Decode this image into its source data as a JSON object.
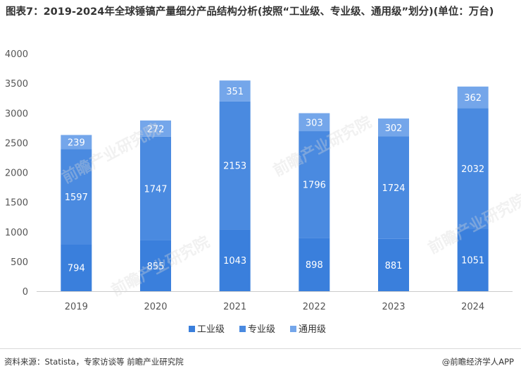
{
  "title": "图表7：2019-2024年全球锤镐产量细分产品结构分析(按照“工业级、专业级、通用级”划分)(单位：万台)",
  "footer": {
    "source": "资料来源：Statista，专家访谈等 前瞻产业研究院",
    "app": "@前瞻经济学人APP"
  },
  "watermark": "前瞻产业研究院",
  "colors": {
    "industrial": "#3a7fdc",
    "professional": "#4a8ae0",
    "general": "#74a6ea",
    "axis": "#cccccc",
    "tick_text": "#555555"
  },
  "chart_data": {
    "type": "bar",
    "stacked": true,
    "categories": [
      "2019",
      "2020",
      "2021",
      "2022",
      "2023",
      "2024"
    ],
    "series": [
      {
        "name": "工业级",
        "values": [
          794,
          855,
          1043,
          898,
          881,
          1051
        ]
      },
      {
        "name": "专业级",
        "values": [
          1597,
          1747,
          2153,
          1796,
          1724,
          2032
        ]
      },
      {
        "name": "通用级",
        "values": [
          239,
          272,
          351,
          303,
          302,
          362
        ]
      }
    ],
    "ylim": [
      0,
      4000
    ],
    "yticks": [
      0,
      500,
      1000,
      1500,
      2000,
      2500,
      3000,
      3500,
      4000
    ],
    "grid": false,
    "legend_position": "bottom"
  }
}
